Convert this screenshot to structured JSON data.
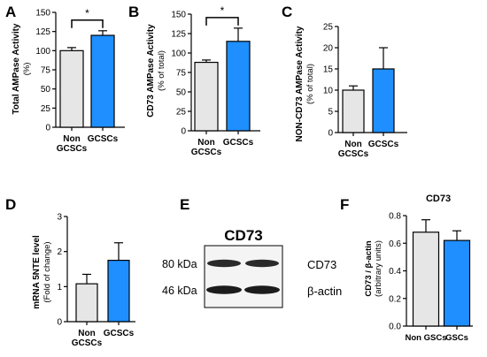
{
  "colors": {
    "control_bar": "#e6e6e6",
    "gscs_bar": "#1f8fff",
    "ink": "#000000"
  },
  "chart_data": [
    {
      "panel_letter": "A",
      "type": "bar",
      "categories": [
        [
          "Non",
          "GCSCs"
        ],
        [
          "GCSCs"
        ]
      ],
      "values": [
        100,
        120
      ],
      "errors": [
        4,
        6
      ],
      "ylabel": "Total AMPase Activity",
      "ylabel_sub": "(%)",
      "ylim": [
        0,
        150
      ],
      "yticks": [
        0,
        25,
        50,
        75,
        100,
        125,
        150
      ],
      "significance": "*"
    },
    {
      "panel_letter": "B",
      "type": "bar",
      "categories": [
        [
          "Non",
          "GCSCs"
        ],
        [
          "GCSCs"
        ]
      ],
      "values": [
        88,
        115
      ],
      "errors": [
        3,
        17
      ],
      "ylabel": "CD73 AMPase Activity",
      "ylabel_sub": "(% of total)",
      "ylim": [
        0,
        150
      ],
      "yticks": [
        0,
        25,
        50,
        75,
        100,
        125,
        150
      ],
      "significance": "*"
    },
    {
      "panel_letter": "C",
      "type": "bar",
      "categories": [
        [
          "Non",
          "GCSCs"
        ],
        [
          "GCSCs"
        ]
      ],
      "values": [
        10,
        15
      ],
      "errors": [
        1,
        5
      ],
      "ylabel": "NON-CD73 AMPase Activity",
      "ylabel_sub": "(% of total)",
      "ylim": [
        0,
        25
      ],
      "yticks": [
        0,
        5,
        10,
        15,
        20,
        25
      ]
    },
    {
      "panel_letter": "D",
      "type": "bar",
      "categories": [
        [
          "Non",
          "GCSCs"
        ],
        [
          "GCSCs"
        ]
      ],
      "values": [
        1.08,
        1.75
      ],
      "errors": [
        0.27,
        0.5
      ],
      "ylabel": "mRNA 5NTE level",
      "ylabel_sub": "(Fold of change)",
      "ylim": [
        0,
        3
      ],
      "yticks": [
        0,
        1,
        2,
        3
      ]
    },
    {
      "panel_letter": "F",
      "type": "bar",
      "title": "CD73",
      "categories": [
        [
          "Non GSCs"
        ],
        [
          "GSCs"
        ]
      ],
      "values": [
        0.68,
        0.62
      ],
      "errors": [
        0.09,
        0.07
      ],
      "ylabel": "CD73 / β-actin",
      "ylabel_sub": "(arbitrary units)",
      "ylim": [
        0,
        0.8
      ],
      "yticks": [
        0.0,
        0.2,
        0.4,
        0.6,
        0.8
      ]
    }
  ],
  "blot": {
    "panel_letter": "E",
    "title": "CD73",
    "marker_top": "80 kDa",
    "marker_bottom": "46 kDa",
    "label_top": "CD73",
    "label_bottom": "β-actin"
  }
}
